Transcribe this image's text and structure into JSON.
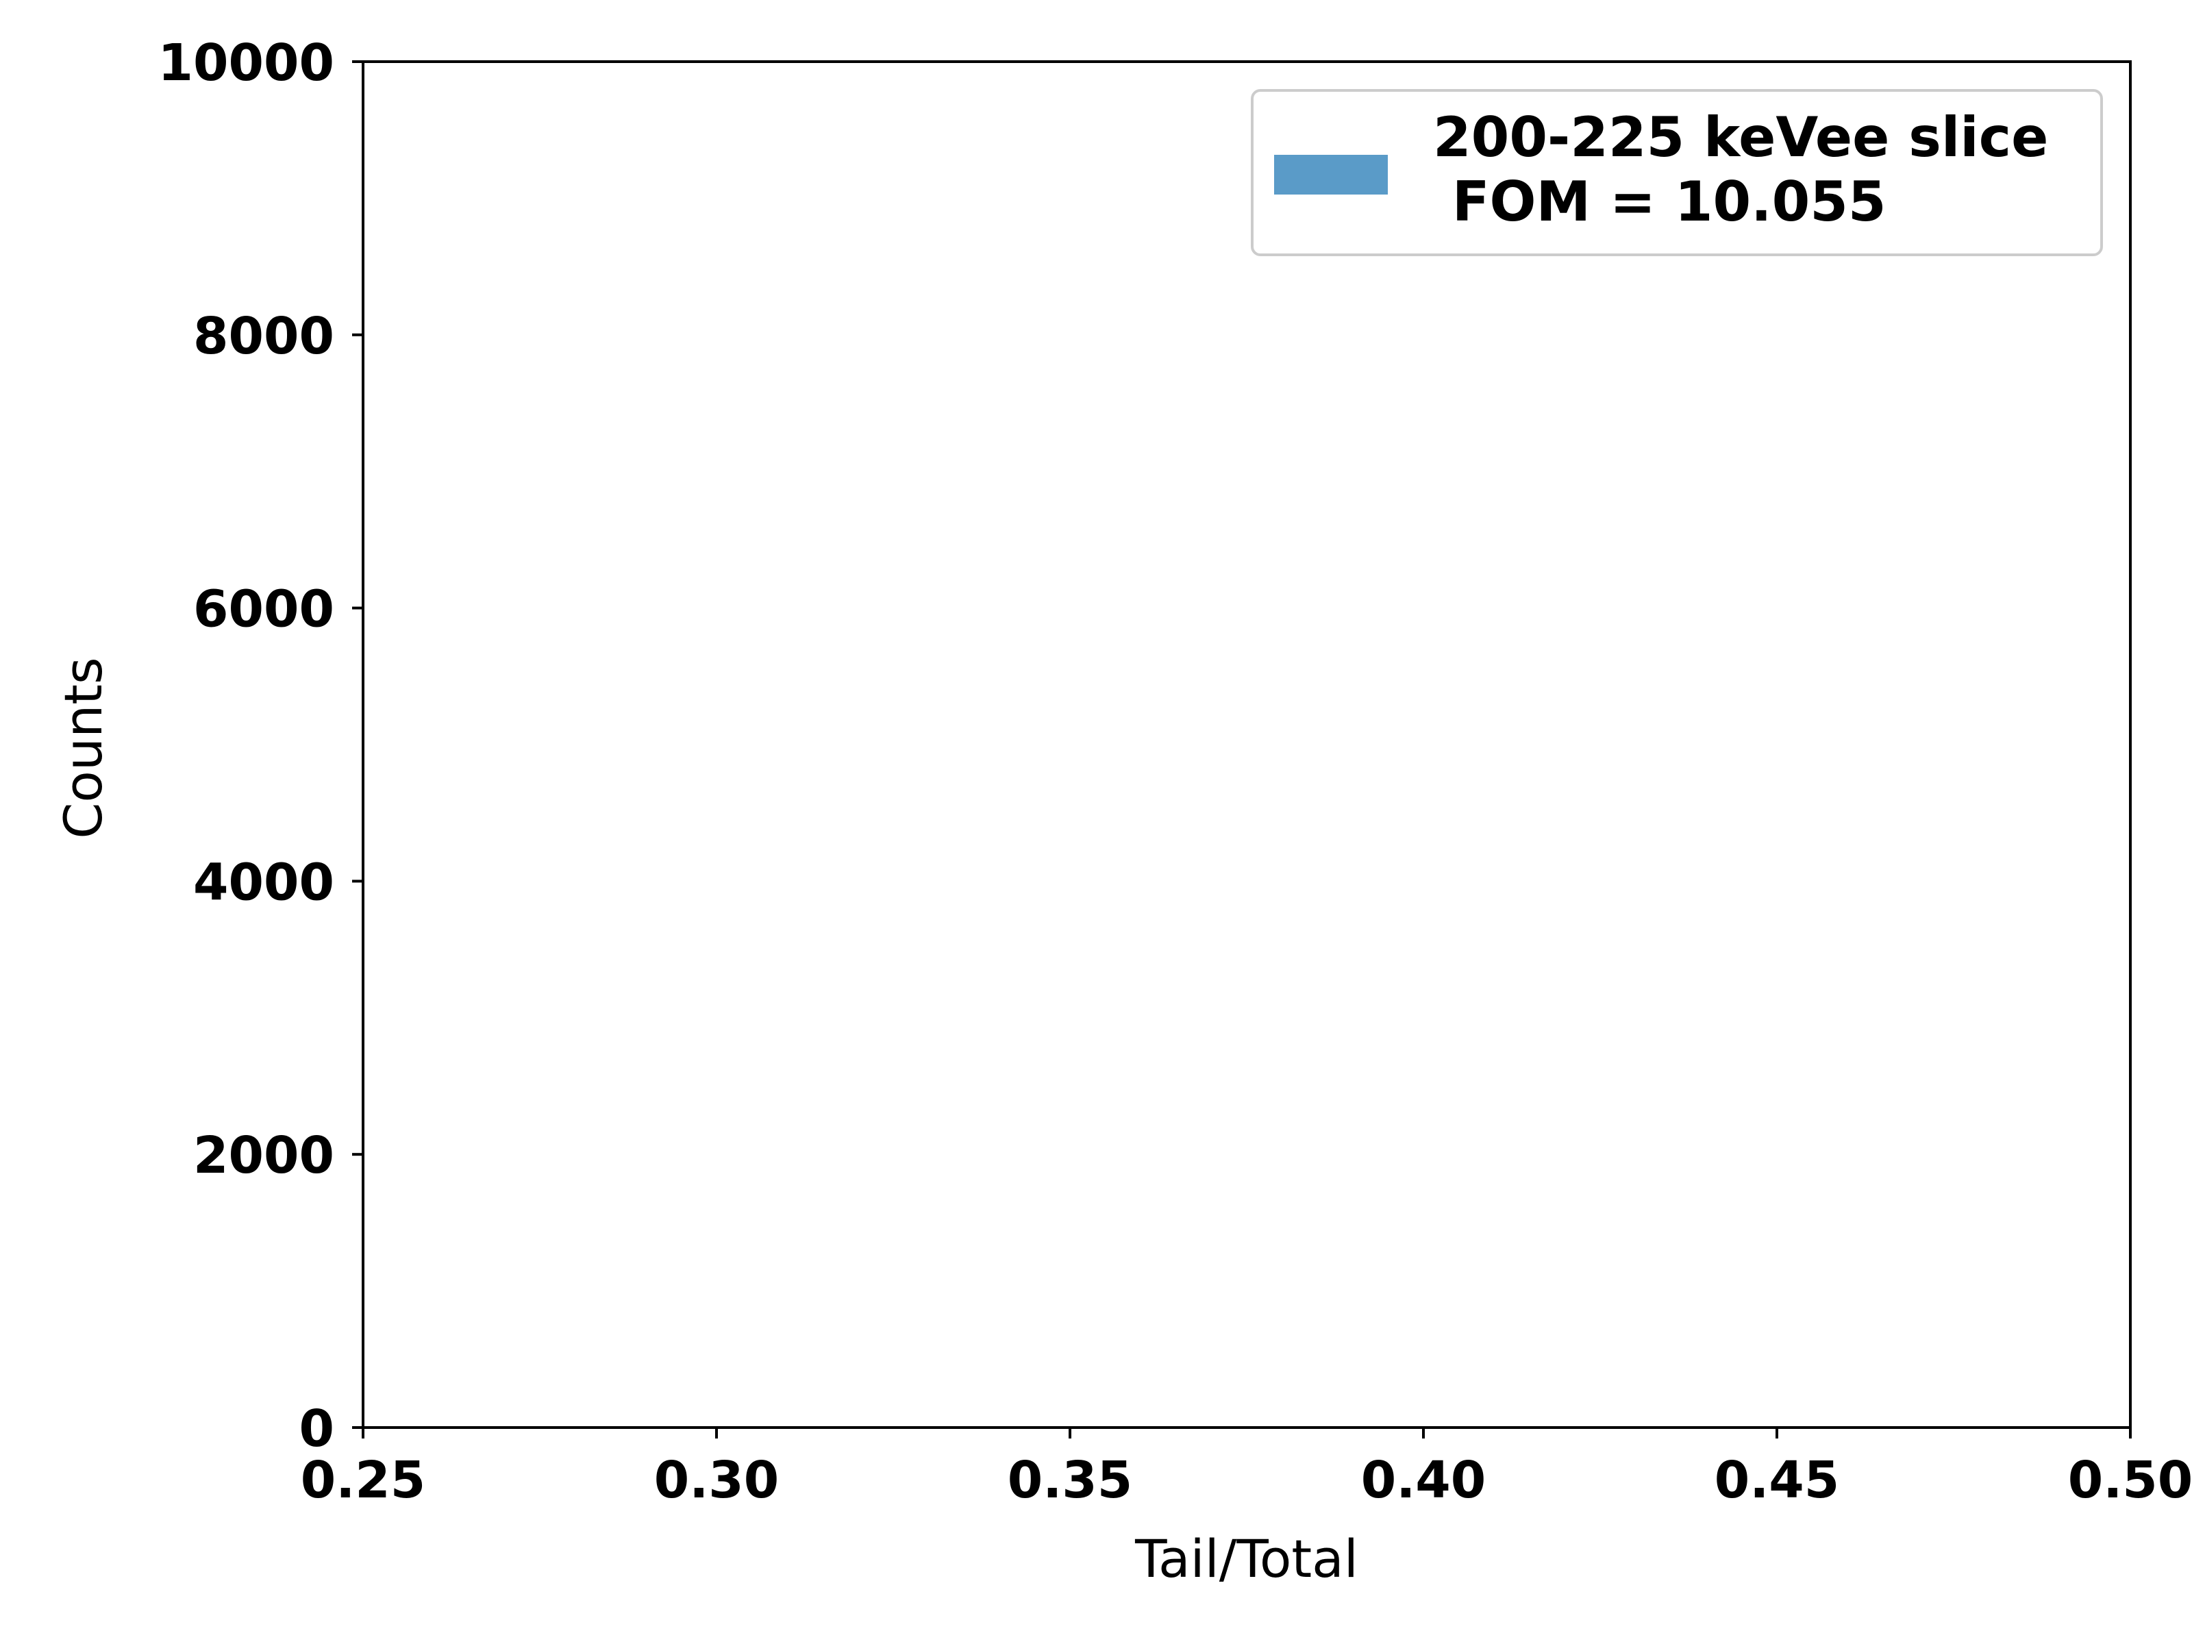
{
  "chart_data": {
    "type": "area",
    "xlabel": "Tail/Total",
    "ylabel": "Counts",
    "xlim": [
      0.25,
      0.5
    ],
    "ylim": [
      0,
      10000
    ],
    "x_ticks": [
      "0.25",
      "0.30",
      "0.35",
      "0.40",
      "0.45",
      "0.50"
    ],
    "y_ticks": [
      "0",
      "2000",
      "4000",
      "6000",
      "8000",
      "10000"
    ],
    "grid": false,
    "legend_position": "top-right",
    "series": [
      {
        "name": "200-225 keVee slice\n FOM = 10.055",
        "legend_line1": "200-225 keVee slice",
        "legend_line2": " FOM = 10.055",
        "color": "#5a9bc8",
        "line_color": "#0000cc",
        "x": [
          0.25,
          0.3,
          0.35,
          0.4,
          0.45,
          0.497
        ],
        "values": [
          0,
          0,
          0,
          0,
          0,
          0
        ]
      }
    ]
  }
}
